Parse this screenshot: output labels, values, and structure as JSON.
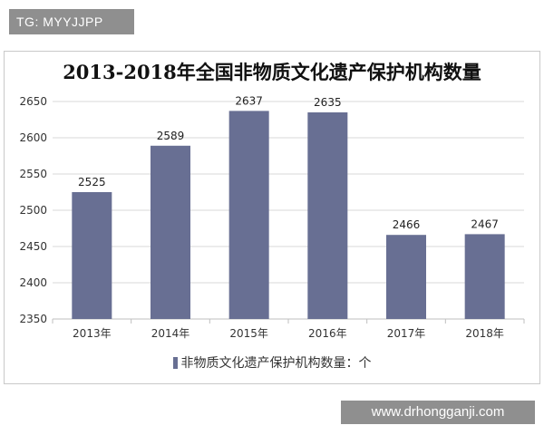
{
  "watermarks": {
    "top": "TG: MYYJJPP",
    "bottom": "www.drhongganji.com"
  },
  "colors": {
    "bar": "#686f93",
    "grid": "#d9d9d9",
    "axis_text": "#333333"
  },
  "chart_data": {
    "type": "bar",
    "title": "2013-2018年全国非物质文化遗产保护机构数量",
    "categories": [
      "2013年",
      "2014年",
      "2015年",
      "2016年",
      "2017年",
      "2018年"
    ],
    "series": [
      {
        "name": "非物质文化遗产保护机构数量：个",
        "values": [
          2525,
          2589,
          2637,
          2635,
          2466,
          2467
        ]
      }
    ],
    "data_labels": [
      "2525",
      "2589",
      "2637",
      "2635",
      "2466",
      "2467"
    ],
    "xlabel": "",
    "ylabel": "",
    "ylim": [
      2350,
      2650
    ],
    "yticks": [
      2350,
      2400,
      2450,
      2500,
      2550,
      2600,
      2650
    ],
    "grid": true,
    "legend_position": "bottom"
  }
}
